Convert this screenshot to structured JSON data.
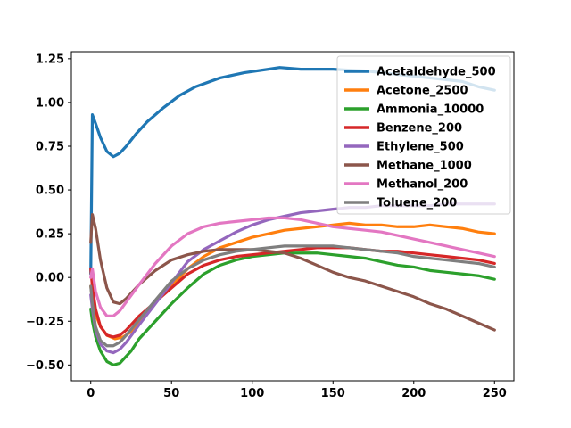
{
  "chart_data": {
    "type": "line",
    "title": "",
    "xlabel": "",
    "ylabel": "",
    "xlim": [
      -12,
      262
    ],
    "ylim": [
      -0.59,
      1.29
    ],
    "xticks": [
      0,
      50,
      100,
      150,
      200,
      250
    ],
    "xtick_labels": [
      "0",
      "50",
      "100",
      "150",
      "200",
      "250"
    ],
    "yticks": [
      -0.5,
      -0.25,
      0.0,
      0.25,
      0.5,
      0.75,
      1.0,
      1.25
    ],
    "ytick_labels": [
      "−0.50",
      "−0.25",
      "0.00",
      "0.25",
      "0.50",
      "0.75",
      "1.00",
      "1.25"
    ],
    "grid": false,
    "legend_position": "top-right",
    "series": [
      {
        "name": "Acetaldehyde_500",
        "color": "#1f77b4",
        "x": [
          0,
          1,
          3,
          6,
          10,
          14,
          18,
          22,
          28,
          35,
          45,
          55,
          65,
          80,
          95,
          110,
          117,
          130,
          150,
          170,
          190,
          210,
          230,
          240,
          250
        ],
        "y": [
          0.02,
          0.93,
          0.88,
          0.8,
          0.72,
          0.69,
          0.71,
          0.75,
          0.82,
          0.89,
          0.97,
          1.04,
          1.09,
          1.14,
          1.17,
          1.19,
          1.2,
          1.19,
          1.19,
          1.18,
          1.16,
          1.14,
          1.12,
          1.09,
          1.07
        ]
      },
      {
        "name": "Acetone_2500",
        "color": "#ff7f0e",
        "x": [
          0,
          1,
          3,
          6,
          10,
          15,
          20,
          25,
          30,
          40,
          50,
          60,
          70,
          80,
          90,
          100,
          110,
          120,
          130,
          140,
          150,
          160,
          170,
          180,
          190,
          200,
          210,
          220,
          230,
          240,
          250
        ],
        "y": [
          -0.05,
          -0.12,
          -0.21,
          -0.28,
          -0.33,
          -0.35,
          -0.34,
          -0.31,
          -0.25,
          -0.14,
          -0.05,
          0.05,
          0.12,
          0.17,
          0.2,
          0.23,
          0.25,
          0.27,
          0.28,
          0.29,
          0.3,
          0.31,
          0.3,
          0.3,
          0.29,
          0.29,
          0.3,
          0.29,
          0.28,
          0.26,
          0.25
        ]
      },
      {
        "name": "Ammonia_10000",
        "color": "#2ca02c",
        "x": [
          0,
          1,
          3,
          6,
          10,
          14,
          18,
          25,
          30,
          40,
          50,
          60,
          70,
          80,
          90,
          100,
          110,
          120,
          130,
          140,
          150,
          160,
          170,
          180,
          190,
          200,
          210,
          220,
          230,
          240,
          250
        ],
        "y": [
          -0.18,
          -0.25,
          -0.34,
          -0.42,
          -0.48,
          -0.5,
          -0.49,
          -0.42,
          -0.35,
          -0.25,
          -0.15,
          -0.06,
          0.02,
          0.07,
          0.1,
          0.12,
          0.13,
          0.14,
          0.14,
          0.14,
          0.13,
          0.12,
          0.11,
          0.09,
          0.07,
          0.06,
          0.04,
          0.03,
          0.02,
          0.01,
          -0.01
        ]
      },
      {
        "name": "Benzene_200",
        "color": "#d62728",
        "x": [
          0,
          1,
          3,
          6,
          10,
          14,
          18,
          22,
          30,
          40,
          50,
          60,
          70,
          80,
          90,
          100,
          110,
          120,
          130,
          140,
          150,
          160,
          170,
          180,
          190,
          200,
          210,
          220,
          230,
          240,
          250
        ],
        "y": [
          0.05,
          -0.05,
          -0.18,
          -0.28,
          -0.33,
          -0.34,
          -0.33,
          -0.3,
          -0.22,
          -0.14,
          -0.06,
          0.02,
          0.07,
          0.1,
          0.12,
          0.13,
          0.14,
          0.15,
          0.16,
          0.17,
          0.17,
          0.17,
          0.16,
          0.15,
          0.15,
          0.14,
          0.13,
          0.12,
          0.11,
          0.1,
          0.08
        ]
      },
      {
        "name": "Ethylene_500",
        "color": "#9467bd",
        "x": [
          0,
          1,
          3,
          6,
          10,
          14,
          18,
          22,
          30,
          40,
          50,
          60,
          70,
          80,
          90,
          100,
          110,
          120,
          130,
          140,
          150,
          160,
          170,
          180,
          190,
          200,
          210,
          220,
          230,
          240,
          250
        ],
        "y": [
          -0.1,
          -0.18,
          -0.3,
          -0.38,
          -0.42,
          -0.43,
          -0.41,
          -0.37,
          -0.27,
          -0.15,
          -0.03,
          0.09,
          0.16,
          0.21,
          0.26,
          0.3,
          0.33,
          0.35,
          0.37,
          0.38,
          0.39,
          0.4,
          0.4,
          0.41,
          0.41,
          0.41,
          0.41,
          0.42,
          0.42,
          0.42,
          0.42
        ]
      },
      {
        "name": "Methane_1000",
        "color": "#8c564b",
        "x": [
          0,
          1,
          3,
          6,
          10,
          14,
          18,
          22,
          30,
          40,
          50,
          60,
          70,
          80,
          90,
          100,
          110,
          120,
          130,
          140,
          150,
          160,
          170,
          180,
          190,
          200,
          210,
          220,
          230,
          240,
          250
        ],
        "y": [
          0.2,
          0.36,
          0.28,
          0.1,
          -0.06,
          -0.14,
          -0.15,
          -0.12,
          -0.04,
          0.04,
          0.1,
          0.13,
          0.15,
          0.16,
          0.16,
          0.16,
          0.15,
          0.14,
          0.11,
          0.07,
          0.03,
          0.0,
          -0.02,
          -0.05,
          -0.08,
          -0.11,
          -0.15,
          -0.18,
          -0.22,
          -0.26,
          -0.3
        ]
      },
      {
        "name": "Methanol_200",
        "color": "#e377c2",
        "x": [
          0,
          1,
          3,
          6,
          10,
          14,
          18,
          22,
          30,
          40,
          50,
          60,
          70,
          80,
          90,
          100,
          110,
          120,
          130,
          140,
          150,
          160,
          170,
          180,
          190,
          200,
          210,
          220,
          230,
          240,
          250
        ],
        "y": [
          0.0,
          0.05,
          -0.08,
          -0.17,
          -0.22,
          -0.22,
          -0.19,
          -0.14,
          -0.04,
          0.08,
          0.18,
          0.25,
          0.29,
          0.31,
          0.32,
          0.33,
          0.34,
          0.34,
          0.33,
          0.31,
          0.29,
          0.28,
          0.27,
          0.26,
          0.24,
          0.22,
          0.2,
          0.18,
          0.16,
          0.14,
          0.12
        ]
      },
      {
        "name": "Toluene_200",
        "color": "#7f7f7f",
        "x": [
          0,
          1,
          3,
          6,
          10,
          14,
          18,
          22,
          30,
          40,
          50,
          60,
          70,
          80,
          90,
          100,
          110,
          120,
          130,
          140,
          150,
          160,
          170,
          180,
          190,
          200,
          210,
          220,
          230,
          240,
          250
        ],
        "y": [
          -0.05,
          -0.15,
          -0.28,
          -0.36,
          -0.39,
          -0.39,
          -0.37,
          -0.33,
          -0.24,
          -0.13,
          -0.02,
          0.05,
          0.1,
          0.13,
          0.15,
          0.16,
          0.17,
          0.18,
          0.18,
          0.18,
          0.18,
          0.17,
          0.16,
          0.15,
          0.14,
          0.12,
          0.11,
          0.1,
          0.09,
          0.08,
          0.06
        ]
      }
    ]
  }
}
